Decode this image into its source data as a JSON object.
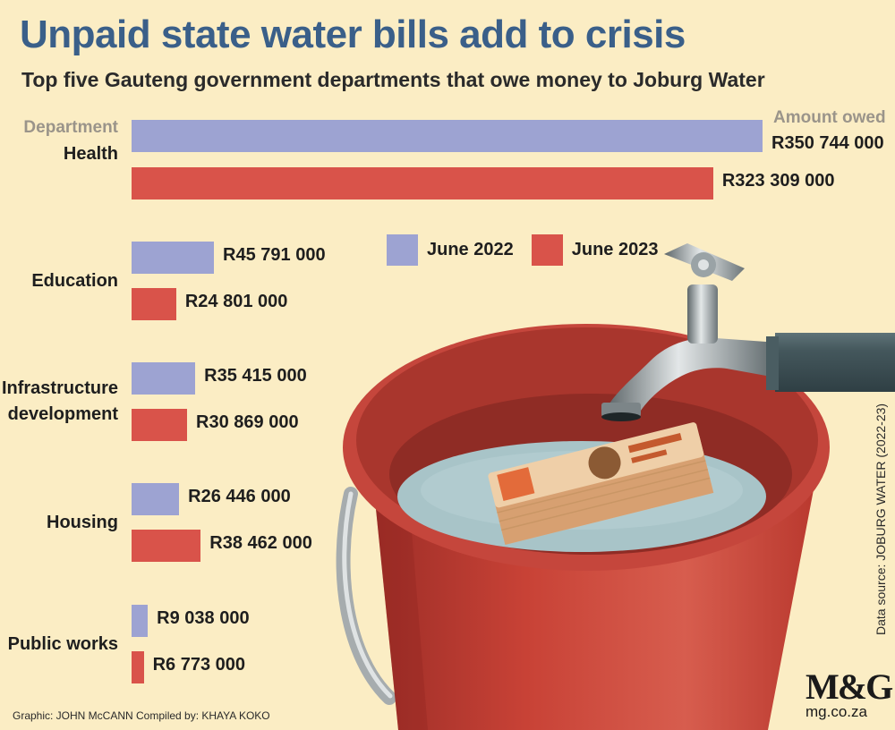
{
  "header": {
    "title": "Unpaid state water bills add to crisis",
    "subtitle": "Top five Gauteng government departments that owe money to Joburg Water",
    "department_label": "Department",
    "amount_label": "Amount owed"
  },
  "chart_data": {
    "type": "bar",
    "orientation": "horizontal",
    "title": "Unpaid state water bills add to crisis",
    "subtitle": "Top five Gauteng government departments that owe money to Joburg Water",
    "xlabel": "Amount owed",
    "ylabel": "Department",
    "xlim": [
      0,
      350744000
    ],
    "grid": false,
    "legend_position": "center",
    "categories": [
      {
        "name": "Health",
        "lines": [
          "Health"
        ]
      },
      {
        "name": "Education",
        "lines": [
          "Education"
        ]
      },
      {
        "name": "Infrastructure development",
        "lines": [
          "Infrastructure",
          "development"
        ]
      },
      {
        "name": "Housing",
        "lines": [
          "Housing"
        ]
      },
      {
        "name": "Public works",
        "lines": [
          "Public works"
        ]
      }
    ],
    "series": [
      {
        "name": "June 2022",
        "color": "#9da3d2",
        "values": [
          350744000,
          45791000,
          35415000,
          26446000,
          9038000
        ],
        "labels": [
          "R350 744 000",
          "R45 791 000",
          "R35 415 000",
          "R26 446 000",
          "R9 038 000"
        ]
      },
      {
        "name": "June 2023",
        "color": "#d9534a",
        "values": [
          323309000,
          24801000,
          30869000,
          38462000,
          6773000
        ],
        "labels": [
          "R323 309 000",
          "R24 801 000",
          "R30 869 000",
          "R38 462 000",
          "R6 773 000"
        ]
      }
    ]
  },
  "footer": {
    "source": "Data source: JOBURG WATER (2022-23)",
    "credit": "Graphic: JOHN McCANN  Compiled by: KHAYA KOKO",
    "logo": "M&G",
    "logo_url": "mg.co.za"
  },
  "colors": {
    "background": "#fbedc4",
    "title": "#3a5f89",
    "bucket_red": "#cc473d",
    "water": "#a8c4c8",
    "tap": "#7d8b92"
  }
}
